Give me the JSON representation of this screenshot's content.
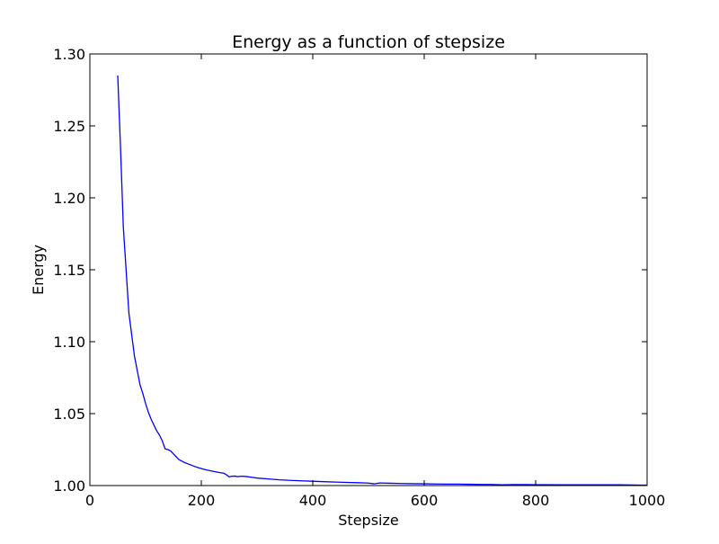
{
  "chart_data": {
    "type": "line",
    "title": "Energy as a function of stepsize",
    "xlabel": "Stepsize",
    "ylabel": "Energy",
    "xlim": [
      0,
      1000
    ],
    "ylim": [
      1.0,
      1.3
    ],
    "xticks": [
      0,
      200,
      400,
      600,
      800,
      1000
    ],
    "xtick_labels": [
      "0",
      "200",
      "400",
      "600",
      "800",
      "1000"
    ],
    "yticks": [
      1.0,
      1.05,
      1.1,
      1.15,
      1.2,
      1.25,
      1.3
    ],
    "ytick_labels": [
      "1.00",
      "1.05",
      "1.10",
      "1.15",
      "1.20",
      "1.25",
      "1.30"
    ],
    "grid": false,
    "legend": "none",
    "series": [
      {
        "color": "#0000ff",
        "x": [
          50,
          55,
          60,
          65,
          70,
          75,
          80,
          85,
          90,
          95,
          100,
          105,
          110,
          115,
          120,
          125,
          130,
          135,
          140,
          145,
          150,
          155,
          160,
          165,
          170,
          180,
          190,
          200,
          210,
          220,
          230,
          240,
          245,
          250,
          255,
          260,
          265,
          270,
          275,
          280,
          290,
          300,
          320,
          340,
          360,
          380,
          400,
          420,
          440,
          460,
          480,
          500,
          510,
          520,
          540,
          560,
          580,
          600,
          620,
          640,
          660,
          680,
          700,
          720,
          740,
          760,
          780,
          800,
          850,
          900,
          950,
          990,
          1000
        ],
        "y": [
          1.285,
          1.235,
          1.18,
          1.15,
          1.12,
          1.105,
          1.09,
          1.08,
          1.07,
          1.064,
          1.057,
          1.051,
          1.046,
          1.042,
          1.038,
          1.035,
          1.031,
          1.0255,
          1.025,
          1.024,
          1.022,
          1.02,
          1.018,
          1.017,
          1.016,
          1.0145,
          1.013,
          1.0118,
          1.0108,
          1.01,
          1.0092,
          1.0086,
          1.0075,
          1.006,
          1.0065,
          1.0066,
          1.0062,
          1.0064,
          1.0065,
          1.0063,
          1.0058,
          1.0052,
          1.0046,
          1.004,
          1.0036,
          1.0033,
          1.003,
          1.0027,
          1.0024,
          1.0022,
          1.002,
          1.0017,
          1.0012,
          1.0018,
          1.0016,
          1.0014,
          1.0013,
          1.0012,
          1.0011,
          1.001,
          1.001,
          1.0009,
          1.0008,
          1.0008,
          1.0005,
          1.0007,
          1.0007,
          1.0006,
          1.0005,
          1.0005,
          1.0005,
          1.0003,
          1.0003
        ]
      }
    ]
  }
}
